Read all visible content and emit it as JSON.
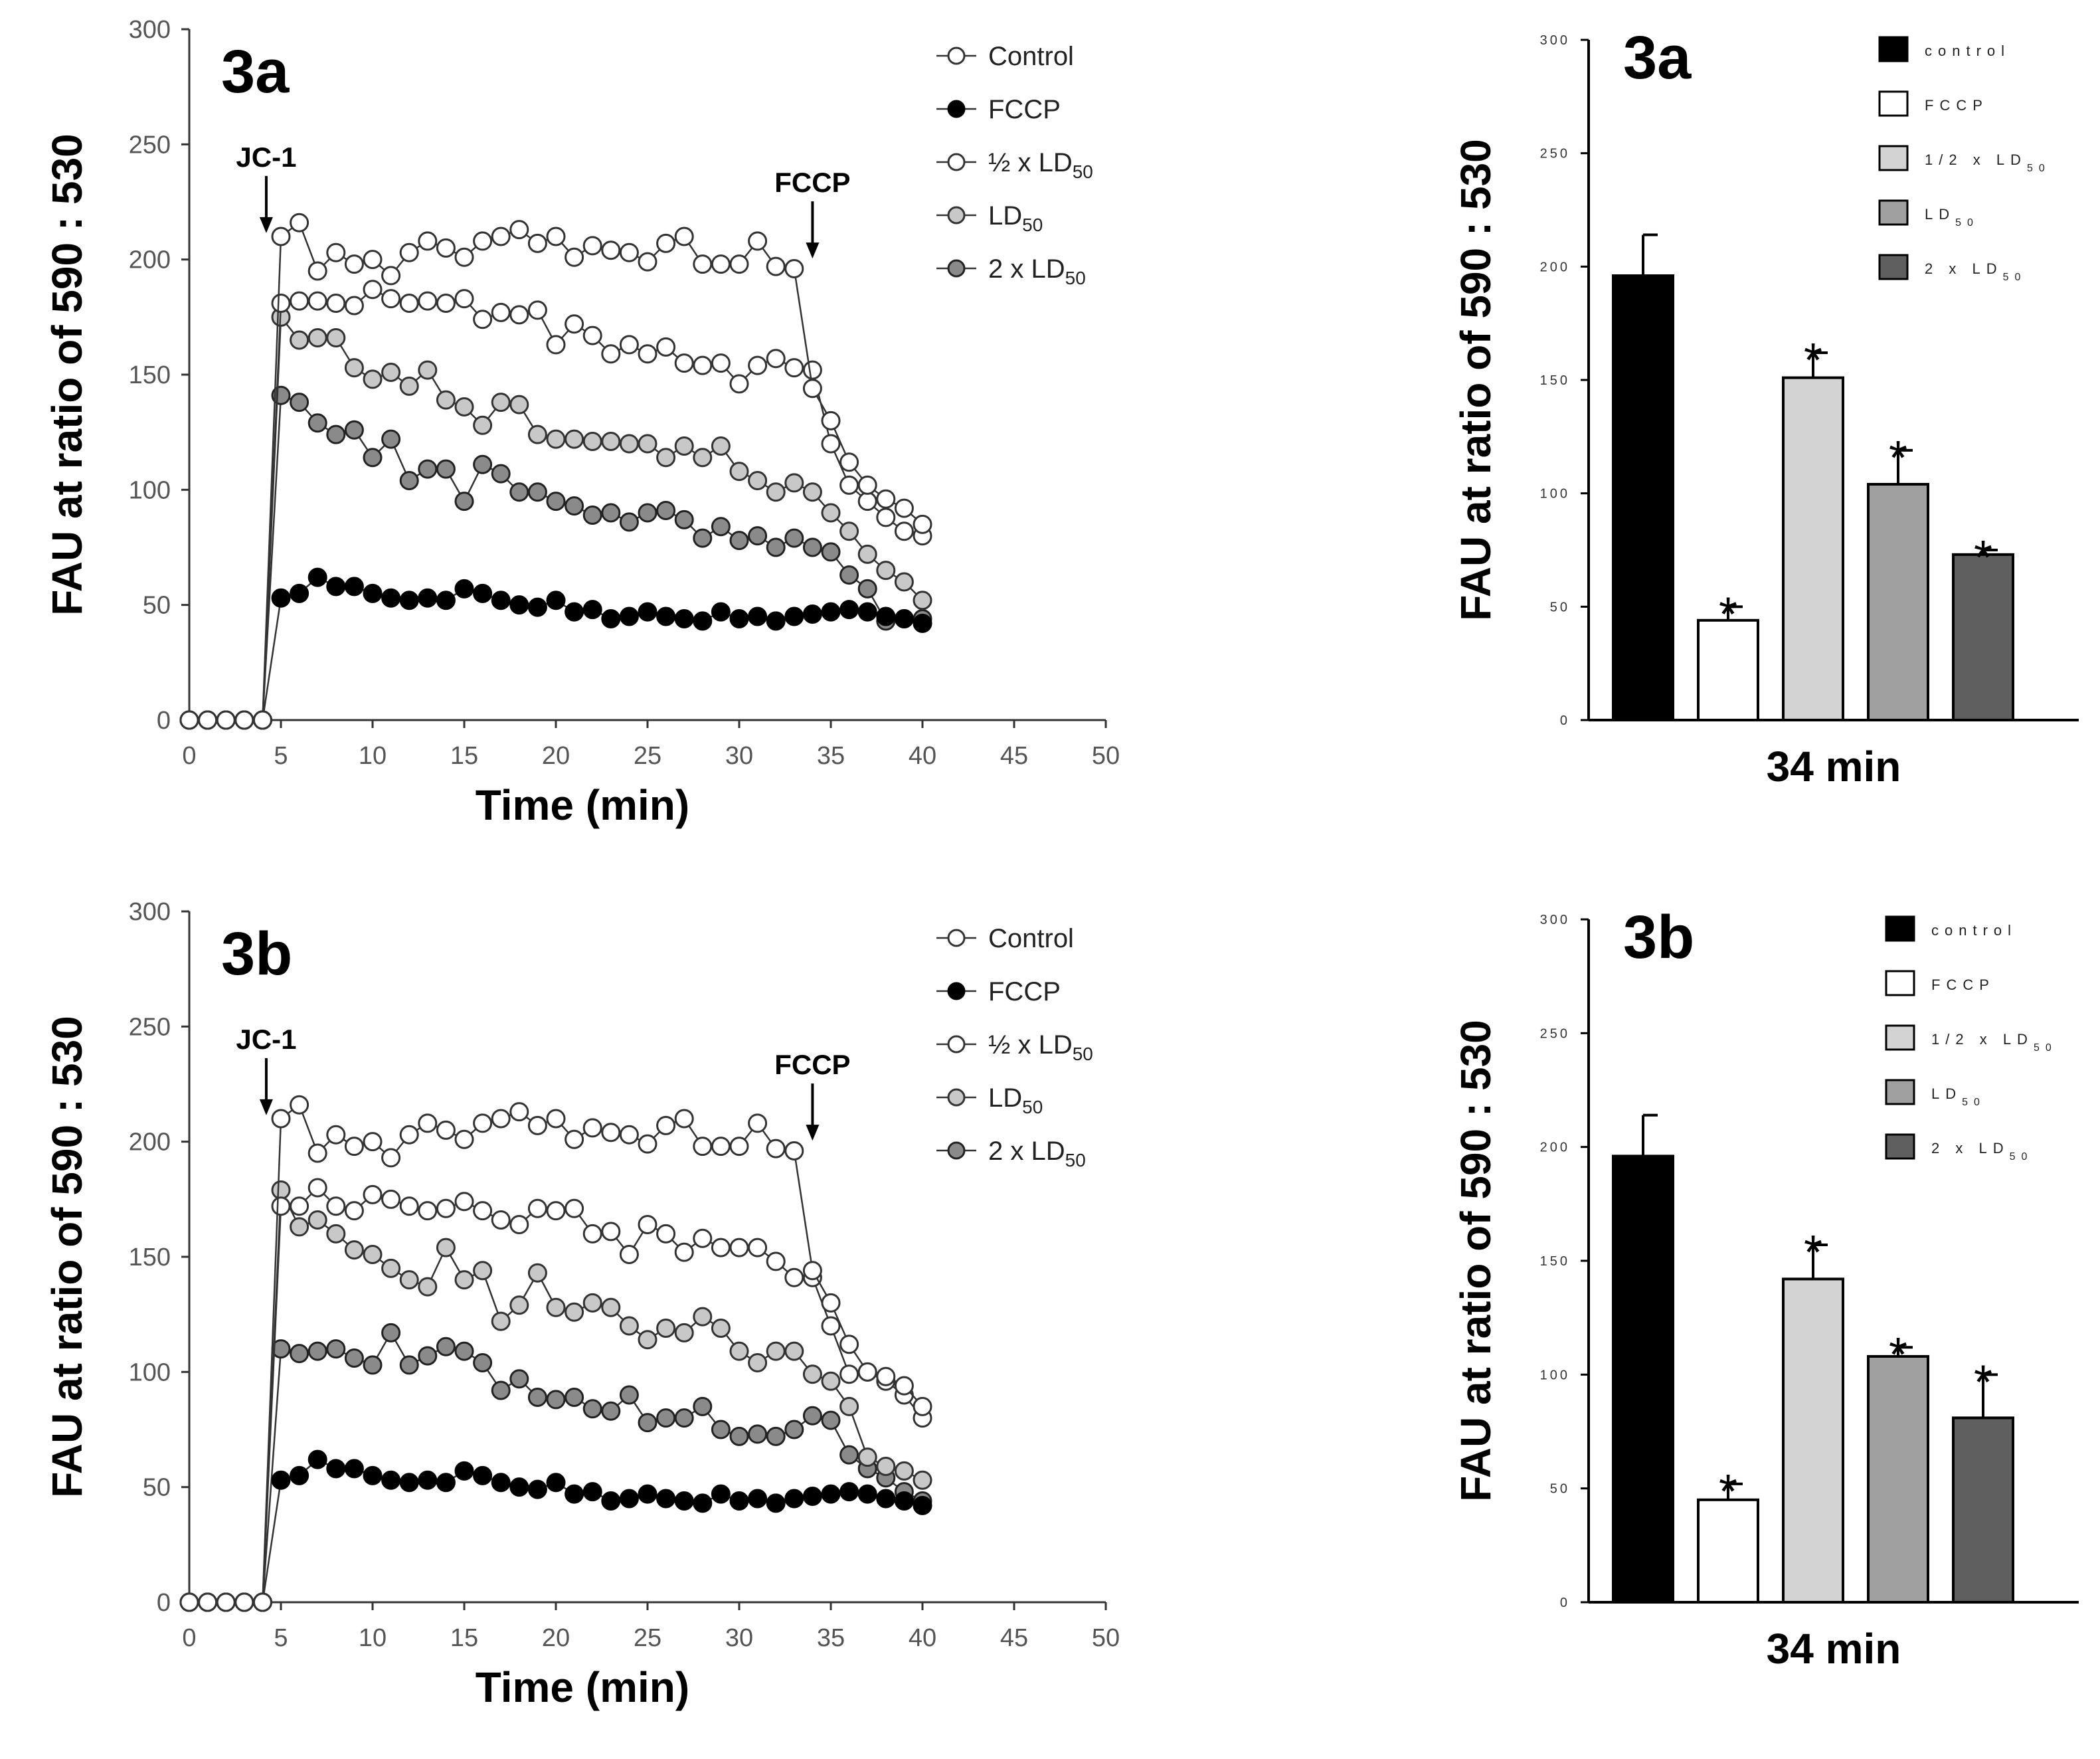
{
  "chart_data": [
    {
      "type": "line",
      "panel": "3a",
      "xlabel": "Time (min)",
      "ylabel": "FAU at ratio of 590 : 530",
      "xlim": [
        0,
        50
      ],
      "ylim": [
        0,
        300
      ],
      "xticks": [
        0,
        5,
        10,
        15,
        20,
        25,
        30,
        35,
        40,
        45,
        50
      ],
      "yticks": [
        0,
        50,
        100,
        150,
        200,
        250,
        300
      ],
      "legend_position": "top-right",
      "annotations": [
        {
          "text": "JC-1",
          "x": 4.2,
          "y": 208
        },
        {
          "text": "FCCP",
          "x": 34,
          "y": 197
        }
      ],
      "x": [
        0,
        1,
        2,
        3,
        4,
        5,
        6,
        7,
        8,
        9,
        10,
        11,
        12,
        13,
        14,
        15,
        16,
        17,
        18,
        19,
        20,
        21,
        22,
        23,
        24,
        25,
        26,
        27,
        28,
        29,
        30,
        31,
        32,
        33,
        34,
        35,
        36,
        37,
        38,
        39,
        40
      ],
      "series": [
        {
          "name": "Control",
          "fill": "#ffffff",
          "stroke": "#333333",
          "values": [
            0,
            0,
            0,
            0,
            0,
            210,
            216,
            195,
            203,
            198,
            200,
            193,
            203,
            208,
            205,
            201,
            208,
            210,
            213,
            207,
            210,
            201,
            206,
            204,
            203,
            199,
            207,
            210,
            198,
            198,
            198,
            208,
            197,
            196,
            144,
            130,
            112,
            102,
            96,
            92,
            85
          ]
        },
        {
          "name": "FCCP",
          "fill": "#000000",
          "stroke": "#000000",
          "values": [
            0,
            0,
            0,
            0,
            0,
            53,
            55,
            62,
            58,
            58,
            55,
            53,
            52,
            53,
            52,
            57,
            55,
            52,
            50,
            49,
            52,
            47,
            48,
            44,
            45,
            47,
            45,
            44,
            43,
            47,
            44,
            45,
            43,
            45,
            46,
            47,
            48,
            47,
            45,
            44,
            42
          ]
        },
        {
          "name": "½ x LD50",
          "fill": "#ffffff",
          "stroke": "#333333",
          "values": [
            0,
            0,
            0,
            0,
            0,
            181,
            182,
            182,
            181,
            180,
            187,
            183,
            181,
            182,
            181,
            183,
            174,
            177,
            176,
            178,
            163,
            172,
            167,
            159,
            163,
            159,
            162,
            155,
            154,
            155,
            146,
            154,
            157,
            153,
            152,
            120,
            102,
            95,
            88,
            82,
            80
          ]
        },
        {
          "name": "LD50",
          "fill": "#c8c8c8",
          "stroke": "#333333",
          "values": [
            0,
            0,
            0,
            0,
            0,
            175,
            165,
            166,
            166,
            153,
            148,
            151,
            145,
            152,
            139,
            136,
            128,
            138,
            137,
            124,
            122,
            122,
            121,
            121,
            120,
            120,
            114,
            119,
            114,
            119,
            108,
            104,
            99,
            103,
            99,
            90,
            82,
            72,
            65,
            60,
            52
          ]
        },
        {
          "name": "2 x LD50",
          "fill": "#8a8a8a",
          "stroke": "#222222",
          "values": [
            0,
            0,
            0,
            0,
            0,
            141,
            138,
            129,
            124,
            126,
            114,
            122,
            104,
            109,
            109,
            95,
            111,
            107,
            99,
            99,
            95,
            93,
            89,
            90,
            86,
            90,
            91,
            87,
            79,
            84,
            78,
            80,
            75,
            79,
            75,
            73,
            63,
            57,
            43,
            44,
            44
          ]
        }
      ]
    },
    {
      "type": "bar",
      "panel": "3a",
      "xlabel": "34 min",
      "ylabel": "FAU at ratio of 590 : 530",
      "ylim": [
        0,
        300
      ],
      "yticks": [
        0,
        50,
        100,
        150,
        200,
        250,
        300
      ],
      "legend_position": "top-right",
      "categories": [
        "control",
        "FCCP",
        "1/2 x LD50",
        "LD50",
        "2 x LD50"
      ],
      "values": [
        196,
        44,
        151,
        104,
        73
      ],
      "errors": [
        18,
        6,
        11,
        15,
        2
      ],
      "significant": [
        "",
        "*",
        "*",
        "*",
        "*"
      ],
      "colors": [
        "#000000",
        "#ffffff",
        "#d3d3d3",
        "#a0a0a0",
        "#5f5f5f"
      ]
    },
    {
      "type": "line",
      "panel": "3b",
      "xlabel": "Time (min)",
      "ylabel": "FAU at ratio of 590 : 530",
      "xlim": [
        0,
        50
      ],
      "ylim": [
        0,
        300
      ],
      "xticks": [
        0,
        5,
        10,
        15,
        20,
        25,
        30,
        35,
        40,
        45,
        50
      ],
      "yticks": [
        0,
        50,
        100,
        150,
        200,
        250,
        300
      ],
      "legend_position": "top-right",
      "annotations": [
        {
          "text": "JC-1",
          "x": 4.2,
          "y": 208
        },
        {
          "text": "FCCP",
          "x": 34,
          "y": 197
        }
      ],
      "x": [
        0,
        1,
        2,
        3,
        4,
        5,
        6,
        7,
        8,
        9,
        10,
        11,
        12,
        13,
        14,
        15,
        16,
        17,
        18,
        19,
        20,
        21,
        22,
        23,
        24,
        25,
        26,
        27,
        28,
        29,
        30,
        31,
        32,
        33,
        34,
        35,
        36,
        37,
        38,
        39,
        40
      ],
      "series": [
        {
          "name": "Control",
          "fill": "#ffffff",
          "stroke": "#333333",
          "values": [
            0,
            0,
            0,
            0,
            0,
            210,
            216,
            195,
            203,
            198,
            200,
            193,
            203,
            208,
            205,
            201,
            208,
            210,
            213,
            207,
            210,
            201,
            206,
            204,
            203,
            199,
            207,
            210,
            198,
            198,
            198,
            208,
            197,
            196,
            144,
            130,
            112,
            100,
            98,
            94,
            85
          ]
        },
        {
          "name": "FCCP",
          "fill": "#000000",
          "stroke": "#000000",
          "values": [
            0,
            0,
            0,
            0,
            0,
            53,
            55,
            62,
            58,
            58,
            55,
            53,
            52,
            53,
            52,
            57,
            55,
            52,
            50,
            49,
            52,
            47,
            48,
            44,
            45,
            47,
            45,
            44,
            43,
            47,
            44,
            45,
            43,
            45,
            46,
            47,
            48,
            47,
            45,
            44,
            42
          ]
        },
        {
          "name": "½ x LD50",
          "fill": "#ffffff",
          "stroke": "#333333",
          "values": [
            0,
            0,
            0,
            0,
            0,
            172,
            172,
            180,
            172,
            170,
            177,
            175,
            172,
            170,
            171,
            174,
            170,
            166,
            164,
            171,
            170,
            171,
            160,
            161,
            151,
            164,
            160,
            152,
            158,
            154,
            154,
            154,
            148,
            141,
            141,
            120,
            99,
            100,
            96,
            90,
            80
          ]
        },
        {
          "name": "LD50",
          "fill": "#c8c8c8",
          "stroke": "#333333",
          "values": [
            0,
            0,
            0,
            0,
            0,
            179,
            163,
            166,
            160,
            153,
            151,
            145,
            140,
            137,
            154,
            140,
            144,
            122,
            129,
            143,
            128,
            126,
            130,
            128,
            120,
            114,
            119,
            117,
            124,
            119,
            109,
            104,
            109,
            109,
            99,
            96,
            85,
            63,
            59,
            57,
            53
          ]
        },
        {
          "name": "2 x LD50",
          "fill": "#8a8a8a",
          "stroke": "#222222",
          "values": [
            0,
            0,
            0,
            0,
            0,
            110,
            108,
            109,
            110,
            106,
            103,
            117,
            103,
            107,
            111,
            109,
            104,
            92,
            97,
            89,
            88,
            89,
            84,
            83,
            90,
            78,
            80,
            80,
            85,
            75,
            72,
            73,
            72,
            75,
            81,
            79,
            64,
            58,
            54,
            48,
            44
          ]
        }
      ]
    },
    {
      "type": "bar",
      "panel": "3b",
      "xlabel": "34 min",
      "ylabel": "FAU at ratio of 590 : 530",
      "ylim": [
        0,
        300
      ],
      "yticks": [
        0,
        50,
        100,
        150,
        200,
        250,
        300
      ],
      "legend_position": "top-right",
      "categories": [
        "control",
        "FCCP",
        "1/2 x LD50",
        "LD50",
        "2 x LD50"
      ],
      "values": [
        196,
        45,
        142,
        108,
        81
      ],
      "errors": [
        18,
        7,
        15,
        4,
        19
      ],
      "significant": [
        "",
        "*",
        "*",
        "*",
        "*"
      ],
      "colors": [
        "#000000",
        "#ffffff",
        "#d3d3d3",
        "#a0a0a0",
        "#5f5f5f"
      ]
    }
  ]
}
